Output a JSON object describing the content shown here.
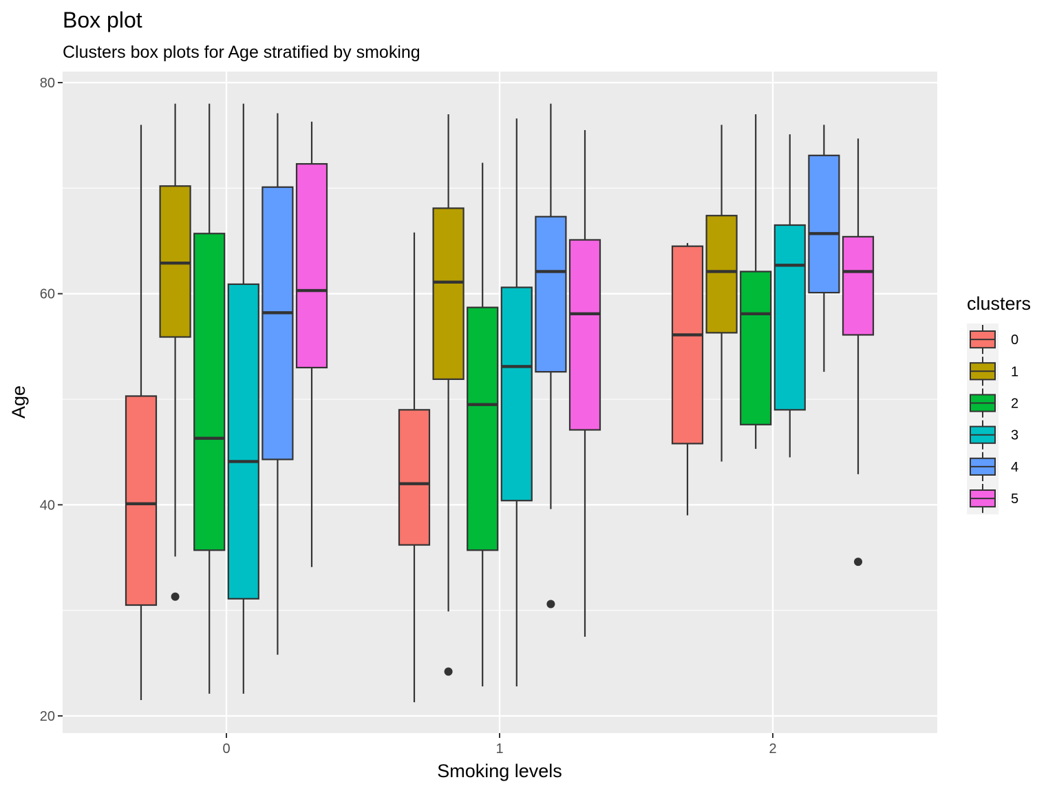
{
  "chart_data": {
    "type": "box",
    "title": "Box plot",
    "subtitle": "Clusters box plots for Age stratified by smoking",
    "xlabel": "Smoking levels",
    "ylabel": "Age",
    "categories": [
      "0",
      "1",
      "2"
    ],
    "ylim": [
      18.3,
      81.3
    ],
    "yticks": [
      20,
      40,
      60,
      80
    ],
    "yticks_labels": [
      "20",
      "40",
      "60",
      "80"
    ],
    "grid": true,
    "legend": {
      "title": "clusters",
      "position": "right"
    },
    "series": [
      {
        "name": "0",
        "color": "#F8766D",
        "boxes": [
          {
            "category": "0",
            "whisker_low": 21.5,
            "q1": 30.5,
            "median": 40.1,
            "q3": 50.3,
            "whisker_high": 76.0,
            "outliers": []
          },
          {
            "category": "1",
            "whisker_low": 21.3,
            "q1": 36.2,
            "median": 42.0,
            "q3": 49.0,
            "whisker_high": 65.8,
            "outliers": []
          },
          {
            "category": "2",
            "whisker_low": 39.0,
            "q1": 45.8,
            "median": 56.1,
            "q3": 64.5,
            "whisker_high": 64.8,
            "outliers": []
          }
        ]
      },
      {
        "name": "1",
        "color": "#B79F00",
        "boxes": [
          {
            "category": "0",
            "whisker_low": 35.1,
            "q1": 55.9,
            "median": 62.9,
            "q3": 70.2,
            "whisker_high": 78.0,
            "outliers": [
              31.3
            ]
          },
          {
            "category": "1",
            "whisker_low": 29.9,
            "q1": 51.9,
            "median": 61.1,
            "q3": 68.1,
            "whisker_high": 77.0,
            "outliers": [
              24.2
            ]
          },
          {
            "category": "2",
            "whisker_low": 44.1,
            "q1": 56.3,
            "median": 62.1,
            "q3": 67.4,
            "whisker_high": 76.0,
            "outliers": []
          }
        ]
      },
      {
        "name": "2",
        "color": "#00BA38",
        "boxes": [
          {
            "category": "0",
            "whisker_low": 22.1,
            "q1": 35.7,
            "median": 46.3,
            "q3": 65.7,
            "whisker_high": 78.0,
            "outliers": []
          },
          {
            "category": "1",
            "whisker_low": 22.8,
            "q1": 35.7,
            "median": 49.5,
            "q3": 58.7,
            "whisker_high": 72.4,
            "outliers": []
          },
          {
            "category": "2",
            "whisker_low": 45.3,
            "q1": 47.6,
            "median": 58.1,
            "q3": 62.1,
            "whisker_high": 77.0,
            "outliers": []
          }
        ]
      },
      {
        "name": "3",
        "color": "#00BFC4",
        "boxes": [
          {
            "category": "0",
            "whisker_low": 22.1,
            "q1": 31.1,
            "median": 44.1,
            "q3": 60.9,
            "whisker_high": 78.0,
            "outliers": []
          },
          {
            "category": "1",
            "whisker_low": 22.8,
            "q1": 40.4,
            "median": 53.1,
            "q3": 60.6,
            "whisker_high": 76.6,
            "outliers": []
          },
          {
            "category": "2",
            "whisker_low": 44.5,
            "q1": 49.0,
            "median": 62.7,
            "q3": 66.5,
            "whisker_high": 75.1,
            "outliers": []
          }
        ]
      },
      {
        "name": "4",
        "color": "#619CFF",
        "boxes": [
          {
            "category": "0",
            "whisker_low": 25.8,
            "q1": 44.3,
            "median": 58.2,
            "q3": 70.1,
            "whisker_high": 77.1,
            "outliers": []
          },
          {
            "category": "1",
            "whisker_low": 39.6,
            "q1": 52.6,
            "median": 62.1,
            "q3": 67.3,
            "whisker_high": 78.0,
            "outliers": [
              30.6
            ]
          },
          {
            "category": "2",
            "whisker_low": 52.6,
            "q1": 60.1,
            "median": 65.7,
            "q3": 73.1,
            "whisker_high": 76.0,
            "outliers": []
          }
        ]
      },
      {
        "name": "5",
        "color": "#F564E3",
        "boxes": [
          {
            "category": "0",
            "whisker_low": 34.1,
            "q1": 53.0,
            "median": 60.3,
            "q3": 72.3,
            "whisker_high": 76.3,
            "outliers": []
          },
          {
            "category": "1",
            "whisker_low": 27.5,
            "q1": 47.1,
            "median": 58.1,
            "q3": 65.1,
            "whisker_high": 75.5,
            "outliers": []
          },
          {
            "category": "2",
            "whisker_low": 42.9,
            "q1": 56.1,
            "median": 62.1,
            "q3": 65.4,
            "whisker_high": 74.7,
            "outliers": [
              34.6
            ]
          }
        ]
      }
    ]
  }
}
